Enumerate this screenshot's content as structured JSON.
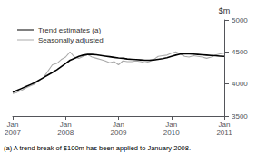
{
  "chart_data": {
    "type": "line",
    "ylabel": "$m",
    "annotations": [
      "(a) A trend break of $100m has been applied to January 2008."
    ],
    "categories": [
      "Jan\n2007",
      null,
      null,
      null,
      null,
      null,
      null,
      null,
      null,
      null,
      null,
      null,
      "Jan\n2008",
      null,
      null,
      null,
      null,
      null,
      null,
      null,
      null,
      null,
      null,
      null,
      "Jan\n2009",
      null,
      null,
      null,
      null,
      null,
      null,
      null,
      null,
      null,
      null,
      null,
      "Jan\n2010",
      null,
      null,
      null,
      null,
      null,
      null,
      null,
      null,
      null,
      null,
      null,
      "Jan\n2011"
    ],
    "series": [
      {
        "name": "Trend estimates (a)",
        "color": "#000000",
        "values": [
          3870,
          3900,
          3930,
          3960,
          3990,
          4020,
          4060,
          4100,
          4140,
          4180,
          4220,
          4270,
          4320,
          4370,
          4400,
          4430,
          4450,
          4460,
          4460,
          4455,
          4445,
          4435,
          4425,
          4415,
          4405,
          4400,
          4390,
          4385,
          4380,
          4375,
          4370,
          4370,
          4375,
          4385,
          4395,
          4410,
          4430,
          4450,
          4465,
          4470,
          4470,
          4465,
          4460,
          4455,
          4450,
          4445,
          4440,
          4435,
          4430
        ]
      },
      {
        "name": "Seasonally adjusted",
        "color": "#aaaaaa",
        "values": [
          3850,
          3870,
          3900,
          3940,
          3970,
          4000,
          4050,
          4100,
          4200,
          4300,
          4320,
          4380,
          4420,
          4500,
          4420,
          4400,
          4430,
          4460,
          4420,
          4400,
          4380,
          4360,
          4330,
          4350,
          4300,
          4360,
          4350,
          4350,
          4360,
          4350,
          4330,
          4350,
          4380,
          4430,
          4440,
          4450,
          4480,
          4500,
          4470,
          4430,
          4420,
          4440,
          4430,
          4420,
          4400,
          4420,
          4450,
          4470,
          4480
        ]
      }
    ],
    "ylim": [
      3500,
      5000
    ],
    "yticks": [
      3500,
      4000,
      4500,
      5000
    ],
    "grid": false,
    "legend": "upper left"
  }
}
